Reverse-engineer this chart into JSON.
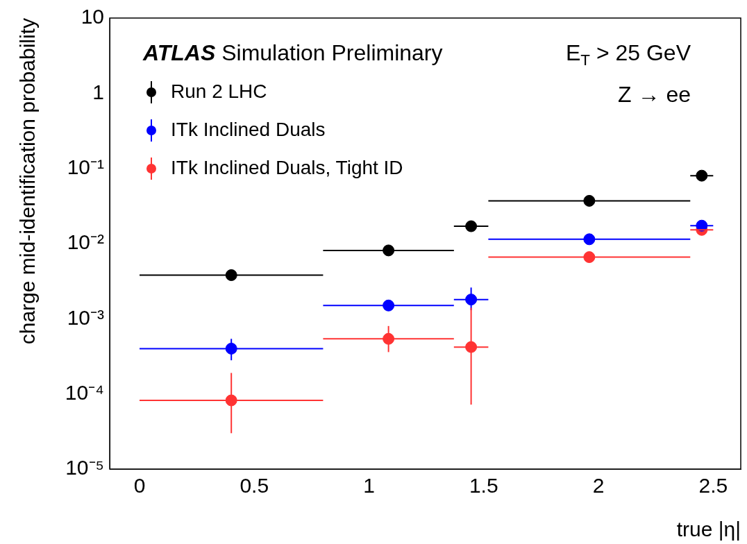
{
  "chart_data": {
    "type": "scatter",
    "xlabel": "true |η|",
    "ylabel": "charge mid-identification probability",
    "annotations": [
      "ATLAS Simulation Preliminary",
      "E$_{T}$ > 25 GeV",
      "Z → ee"
    ],
    "x": [
      0.4,
      1.085,
      1.445,
      1.96,
      2.45
    ],
    "series": [
      {
        "name": "Run 2 LHC",
        "color": "#000000",
        "values": [
          0.0038,
          0.0081,
          0.017,
          0.037,
          0.08
        ],
        "xerrors": [
          0.4,
          0.285,
          0.075,
          0.44,
          0.05
        ]
      },
      {
        "name": "ITk Inclined Duals",
        "color": "#0000ff",
        "values": [
          0.0004,
          0.0015,
          0.0018,
          0.0114,
          0.0173
        ],
        "xerrors": [
          0.4,
          0.285,
          0.075,
          0.44,
          0.05
        ],
        "errors": [
          [
            0.00028,
            0.00054
          ],
          null,
          [
            0.0013,
            0.0026
          ],
          null,
          null
        ]
      },
      {
        "name": "ITk Inclined Duals, Tight ID",
        "color": "#ff3333",
        "values": [
          8.2e-05,
          0.00054,
          0.00042,
          0.0066,
          0.0152
        ],
        "xerrors": [
          0.4,
          0.285,
          0.075,
          0.44,
          0.05
        ],
        "errors": [
          [
            3e-05,
            0.00019
          ],
          [
            0.00036,
            0.0008
          ],
          [
            7.2e-05,
            0.0014
          ],
          null,
          null
        ]
      }
    ],
    "xlim": [
      -0.13,
      2.62
    ],
    "xticks": [
      0,
      0.5,
      1,
      1.5,
      2,
      2.5
    ],
    "ylim": [
      1e-05,
      10
    ],
    "yticks": [
      {
        "value": 1e-05,
        "label": "10⁻⁵"
      },
      {
        "value": 0.0001,
        "label": "10⁻⁴"
      },
      {
        "value": 0.001,
        "label": "10⁻³"
      },
      {
        "value": 0.01,
        "label": "10⁻²"
      },
      {
        "value": 0.1,
        "label": "10⁻¹"
      },
      1,
      10
    ],
    "log": "y",
    "grid": false,
    "legend": "top left",
    "marker": "circle"
  }
}
